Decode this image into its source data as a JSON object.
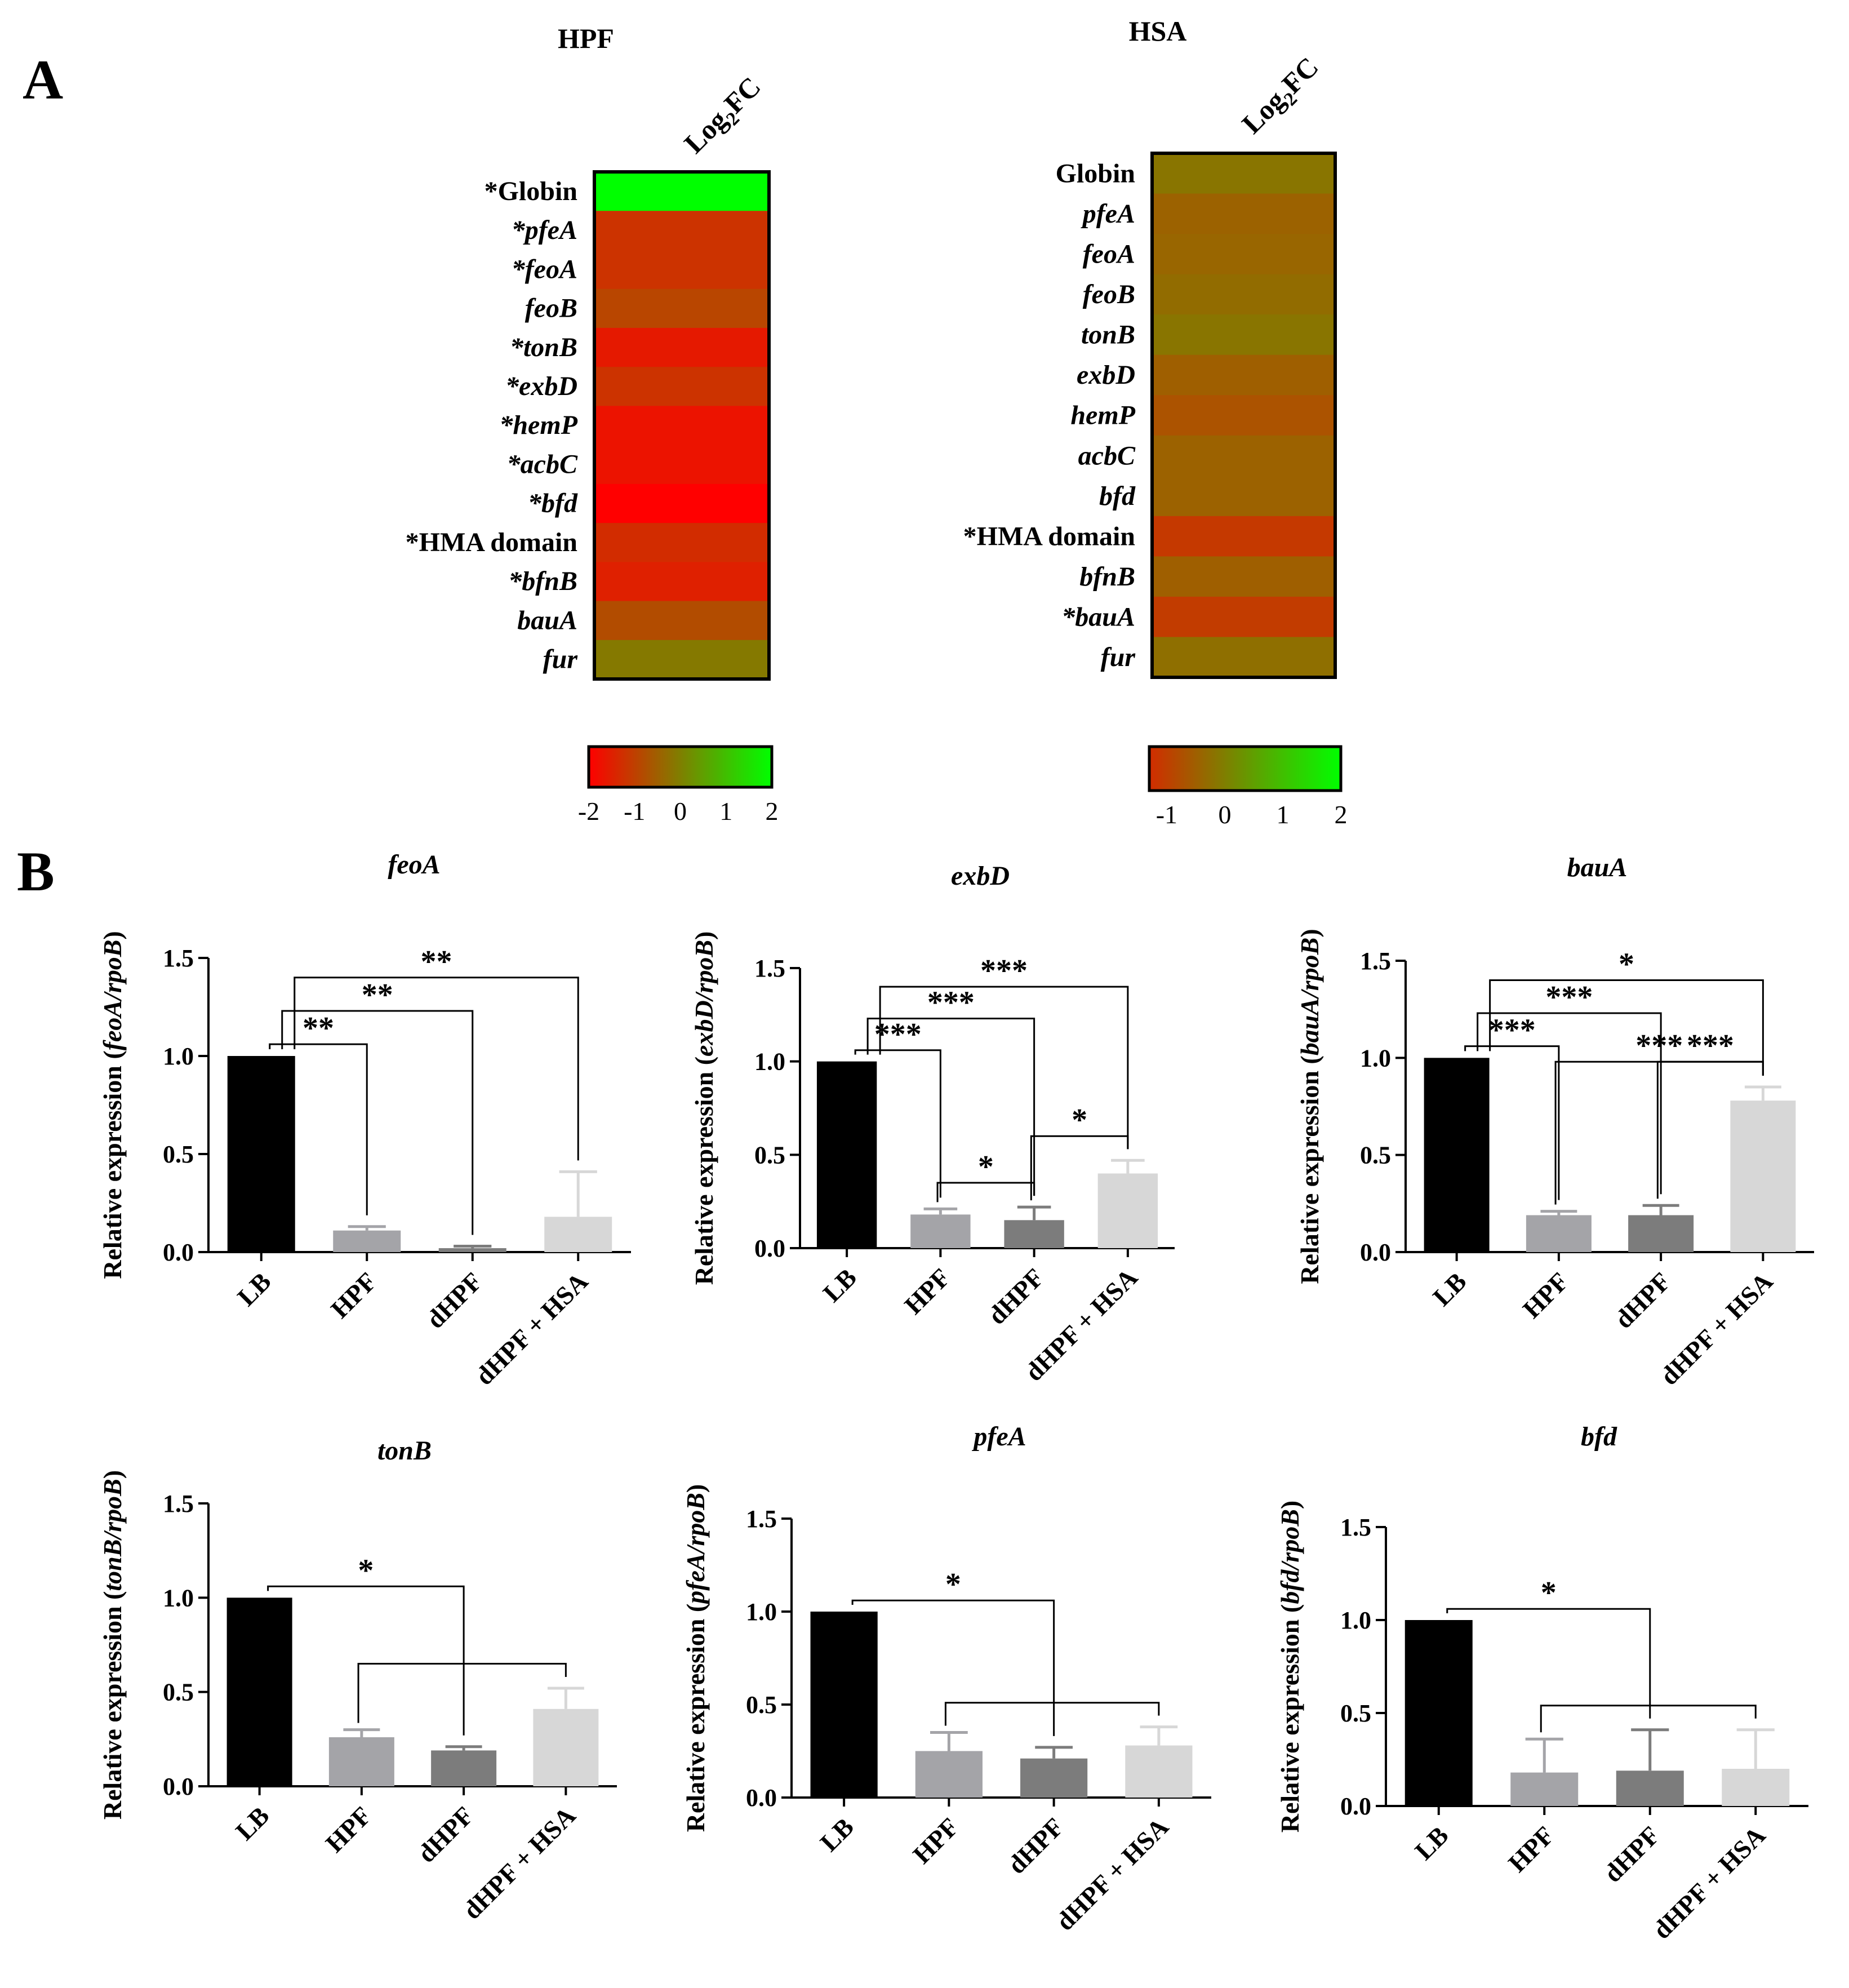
{
  "panels": {
    "a_label": "A",
    "b_label": "B"
  },
  "chart_data": [
    {
      "type": "heatmap",
      "title": "HPF",
      "column_label": "Log2FC",
      "rows": [
        {
          "label": "*Globin",
          "italic": false,
          "value": 2.0
        },
        {
          "label": "*pfeA",
          "italic": true,
          "value": -1.2
        },
        {
          "label": "*feoA",
          "italic": true,
          "value": -1.2
        },
        {
          "label": "feoB",
          "italic": true,
          "value": -0.9
        },
        {
          "label": "*tonB",
          "italic": true,
          "value": -1.6
        },
        {
          "label": "*exbD",
          "italic": true,
          "value": -1.2
        },
        {
          "label": "*hemP",
          "italic": true,
          "value": -1.7
        },
        {
          "label": "*acbC",
          "italic": true,
          "value": -1.7
        },
        {
          "label": "*bfd",
          "italic": true,
          "value": -2.0
        },
        {
          "label": "*HMA domain",
          "italic": false,
          "value": -1.3
        },
        {
          "label": "*bfnB",
          "italic": true,
          "value": -1.5
        },
        {
          "label": "bauA",
          "italic": true,
          "value": -0.8
        },
        {
          "label": "fur",
          "italic": true,
          "value": -0.1
        }
      ],
      "scale": {
        "min": -2,
        "max": 2,
        "ticks": [
          "-2",
          "-1",
          "0",
          "1",
          "2"
        ]
      },
      "colors": {
        "low": "#ff0000",
        "mid": "#7f7f00",
        "high": "#00ff00"
      }
    },
    {
      "type": "heatmap",
      "title": "HSA",
      "column_label": "Log2FC",
      "rows": [
        {
          "label": "Globin",
          "italic": false,
          "value": -0.15
        },
        {
          "label": "pfeA",
          "italic": true,
          "value": -0.45
        },
        {
          "label": "feoA",
          "italic": true,
          "value": -0.4
        },
        {
          "label": "feoB",
          "italic": true,
          "value": -0.3
        },
        {
          "label": "tonB",
          "italic": true,
          "value": -0.15
        },
        {
          "label": "exbD",
          "italic": true,
          "value": -0.5
        },
        {
          "label": "hemP",
          "italic": true,
          "value": -0.7
        },
        {
          "label": "acbC",
          "italic": true,
          "value": -0.45
        },
        {
          "label": "bfd",
          "italic": true,
          "value": -0.45
        },
        {
          "label": "*HMA domain",
          "italic": false,
          "value": -1.1
        },
        {
          "label": "bfnB",
          "italic": true,
          "value": -0.5
        },
        {
          "label": "*bauA",
          "italic": true,
          "value": -1.05
        },
        {
          "label": "fur",
          "italic": true,
          "value": -0.25
        }
      ],
      "scale": {
        "min": -1.3,
        "max": 2,
        "ticks": [
          "-1",
          "0",
          "1",
          "2"
        ]
      },
      "colors": {
        "low": "#ff0000",
        "mid": "#7f7f00",
        "high": "#00ff00"
      }
    },
    {
      "type": "bar",
      "title": "feoA",
      "ylabel_prefix": "Relative expression (",
      "ylabel_gene": "feoA/rpoB",
      "ylabel_suffix": ")",
      "ylim": [
        0,
        1.5
      ],
      "yticks": [
        "0.0",
        "0.5",
        "1.0",
        "1.5"
      ],
      "categories": [
        "LB",
        "HPF",
        "dHPF",
        "dHPF + HSA"
      ],
      "values": [
        1.0,
        0.11,
        0.02,
        0.18
      ],
      "errors": [
        0,
        0.02,
        0.01,
        0.23
      ],
      "colors": [
        "#000000",
        "#a4a4a8",
        "#7c7c7c",
        "#d7d7d7"
      ],
      "brackets": [
        {
          "from": 0,
          "to": 1,
          "label": "**"
        },
        {
          "from": 0,
          "to": 2,
          "label": "**"
        },
        {
          "from": 0,
          "to": 3,
          "label": "**"
        }
      ]
    },
    {
      "type": "bar",
      "title": "exbD",
      "ylabel_prefix": "Relative expression (",
      "ylabel_gene": "exbD/rpoB",
      "ylabel_suffix": ")",
      "ylim": [
        0,
        1.5
      ],
      "yticks": [
        "0.0",
        "0.5",
        "1.0",
        "1.5"
      ],
      "categories": [
        "LB",
        "HPF",
        "dHPF",
        "dHPF + HSA"
      ],
      "values": [
        1.0,
        0.18,
        0.15,
        0.4
      ],
      "errors": [
        0,
        0.03,
        0.07,
        0.07
      ],
      "colors": [
        "#000000",
        "#a4a4a8",
        "#7c7c7c",
        "#d7d7d7"
      ],
      "brackets": [
        {
          "from": 0,
          "to": 1,
          "label": "***"
        },
        {
          "from": 0,
          "to": 2,
          "label": "***"
        },
        {
          "from": 0,
          "to": 3,
          "label": "***"
        },
        {
          "from": 1,
          "to": 2,
          "label": "*"
        },
        {
          "from": 2,
          "to": 3,
          "label": "*"
        }
      ]
    },
    {
      "type": "bar",
      "title": "bauA",
      "ylabel_prefix": "Relative expression (",
      "ylabel_gene": "bauA/rpoB",
      "ylabel_suffix": ")",
      "ylim": [
        0,
        1.5
      ],
      "yticks": [
        "0.0",
        "0.5",
        "1.0",
        "1.5"
      ],
      "categories": [
        "LB",
        "HPF",
        "dHPF",
        "dHPF + HSA"
      ],
      "values": [
        1.0,
        0.19,
        0.19,
        0.78
      ],
      "errors": [
        0,
        0.02,
        0.05,
        0.07
      ],
      "colors": [
        "#000000",
        "#a4a4a8",
        "#7c7c7c",
        "#d7d7d7"
      ],
      "brackets": [
        {
          "from": 0,
          "to": 1,
          "label": "***"
        },
        {
          "from": 0,
          "to": 2,
          "label": "***"
        },
        {
          "from": 0,
          "to": 3,
          "label": "*"
        },
        {
          "from": 1,
          "to": 3,
          "label": "***"
        },
        {
          "from": 2,
          "to": 3,
          "label": "***"
        }
      ]
    },
    {
      "type": "bar",
      "title": "tonB",
      "ylabel_prefix": "Relative expression (",
      "ylabel_gene": "tonB/rpoB",
      "ylabel_suffix": ")",
      "ylim": [
        0,
        1.5
      ],
      "yticks": [
        "0.0",
        "0.5",
        "1.0",
        "1.5"
      ],
      "categories": [
        "LB",
        "HPF",
        "dHPF",
        "dHPF + HSA"
      ],
      "values": [
        1.0,
        0.26,
        0.19,
        0.41
      ],
      "errors": [
        0,
        0.04,
        0.02,
        0.11
      ],
      "colors": [
        "#000000",
        "#a4a4a8",
        "#7c7c7c",
        "#d7d7d7"
      ],
      "brackets": [
        {
          "from": 0,
          "to": 2,
          "label": "*"
        },
        {
          "from": 1,
          "to": 3,
          "label": ""
        }
      ]
    },
    {
      "type": "bar",
      "title": "pfeA",
      "ylabel_prefix": "Relative expression (",
      "ylabel_gene": "pfeA/rpoB",
      "ylabel_suffix": ")",
      "ylim": [
        0,
        1.5
      ],
      "yticks": [
        "0.0",
        "0.5",
        "1.0",
        "1.5"
      ],
      "categories": [
        "LB",
        "HPF",
        "dHPF",
        "dHPF + HSA"
      ],
      "values": [
        1.0,
        0.25,
        0.21,
        0.28
      ],
      "errors": [
        0,
        0.1,
        0.06,
        0.1
      ],
      "colors": [
        "#000000",
        "#a4a4a8",
        "#7c7c7c",
        "#d7d7d7"
      ],
      "brackets": [
        {
          "from": 0,
          "to": 2,
          "label": "*"
        },
        {
          "from": 1,
          "to": 3,
          "label": ""
        }
      ]
    },
    {
      "type": "bar",
      "title": "bfd",
      "ylabel_prefix": "Relative expression (",
      "ylabel_gene": "bfd/rpoB",
      "ylabel_suffix": ")",
      "ylim": [
        0,
        1.5
      ],
      "yticks": [
        "0.0",
        "0.5",
        "1.0",
        "1.5"
      ],
      "categories": [
        "LB",
        "HPF",
        "dHPF",
        "dHPF + HSA"
      ],
      "values": [
        1.0,
        0.18,
        0.19,
        0.2
      ],
      "errors": [
        0,
        0.18,
        0.22,
        0.21
      ],
      "colors": [
        "#000000",
        "#a4a4a8",
        "#7c7c7c",
        "#d7d7d7"
      ],
      "brackets": [
        {
          "from": 0,
          "to": 2,
          "label": "*"
        },
        {
          "from": 1,
          "to": 3,
          "label": ""
        }
      ]
    }
  ]
}
